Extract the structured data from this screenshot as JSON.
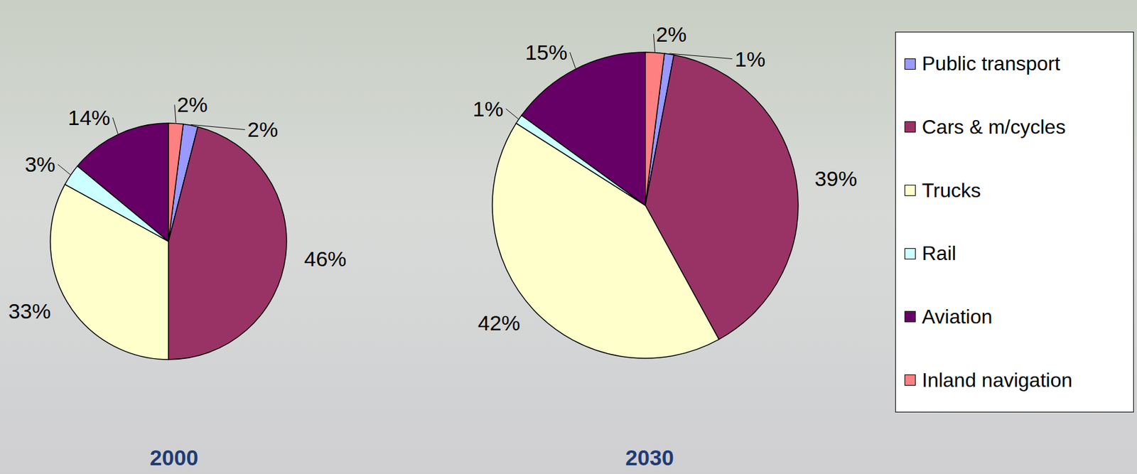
{
  "chart_data": [
    {
      "type": "pie",
      "title": "2000",
      "categories": [
        "Public transport",
        "Cars & m/cycles",
        "Trucks",
        "Rail",
        "Aviation",
        "Inland navigation"
      ],
      "values": [
        2,
        46,
        33,
        3,
        14,
        2
      ],
      "value_labels": [
        "2%",
        "46%",
        "33%",
        "3%",
        "14%",
        "2%"
      ],
      "colors": [
        "#9999ff",
        "#993366",
        "#ffffcc",
        "#ccffff",
        "#660066",
        "#ff8080"
      ],
      "data_labels": true
    },
    {
      "type": "pie",
      "title": "2030",
      "categories": [
        "Public transport",
        "Cars & m/cycles",
        "Trucks",
        "Rail",
        "Aviation",
        "Inland navigation"
      ],
      "values": [
        1,
        39,
        42,
        1,
        15,
        2
      ],
      "value_labels": [
        "1%",
        "39%",
        "42%",
        "1%",
        "15%",
        "2%"
      ],
      "colors": [
        "#9999ff",
        "#993366",
        "#ffffcc",
        "#ccffff",
        "#660066",
        "#ff8080"
      ],
      "data_labels": true,
      "legend": "right"
    }
  ]
}
